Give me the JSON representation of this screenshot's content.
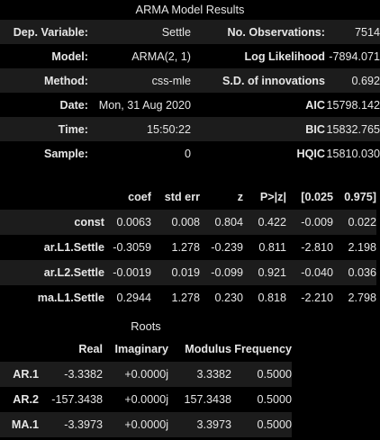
{
  "summary": {
    "title": "ARMA Model Results",
    "rows": [
      {
        "l1": "Dep. Variable:",
        "v1": "Settle",
        "l2": "No. Observations:",
        "v2": "7514"
      },
      {
        "l1": "Model:",
        "v1": "ARMA(2, 1)",
        "l2": "Log Likelihood",
        "v2": "-7894.071"
      },
      {
        "l1": "Method:",
        "v1": "css-mle",
        "l2": "S.D. of innovations",
        "v2": "0.692"
      },
      {
        "l1": "Date:",
        "v1": "Mon, 31 Aug 2020",
        "l2": "AIC",
        "v2": "15798.142"
      },
      {
        "l1": "Time:",
        "v1": "15:50:22",
        "l2": "BIC",
        "v2": "15832.765"
      },
      {
        "l1": "Sample:",
        "v1": "0",
        "l2": "HQIC",
        "v2": "15810.030"
      }
    ]
  },
  "coefficients": {
    "headers": [
      "coef",
      "std err",
      "z",
      "P>|z|",
      "[0.025",
      "0.975]"
    ],
    "rows": [
      {
        "name": "const",
        "coef": "0.0063",
        "stderr": "0.008",
        "z": "0.804",
        "p": "0.422",
        "lo": "-0.009",
        "hi": "0.022"
      },
      {
        "name": "ar.L1.Settle",
        "coef": "-0.3059",
        "stderr": "1.278",
        "z": "-0.239",
        "p": "0.811",
        "lo": "-2.810",
        "hi": "2.198"
      },
      {
        "name": "ar.L2.Settle",
        "coef": "-0.0019",
        "stderr": "0.019",
        "z": "-0.099",
        "p": "0.921",
        "lo": "-0.040",
        "hi": "0.036"
      },
      {
        "name": "ma.L1.Settle",
        "coef": "0.2944",
        "stderr": "1.278",
        "z": "0.230",
        "p": "0.818",
        "lo": "-2.210",
        "hi": "2.798"
      }
    ]
  },
  "roots": {
    "title": "Roots",
    "headers": [
      "Real",
      "Imaginary",
      "Modulus",
      "Frequency"
    ],
    "rows": [
      {
        "name": "AR.1",
        "real": "-3.3382",
        "imag": "+0.0000j",
        "mod": "3.3382",
        "freq": "0.5000"
      },
      {
        "name": "AR.2",
        "real": "-157.3438",
        "imag": "+0.0000j",
        "mod": "157.3438",
        "freq": "0.5000"
      },
      {
        "name": "MA.1",
        "real": "-3.3973",
        "imag": "+0.0000j",
        "mod": "3.3973",
        "freq": "0.5000"
      }
    ]
  },
  "colors": {
    "background": "#000000",
    "stripe": "#1c1c1c",
    "text": "#e6e6e6"
  }
}
